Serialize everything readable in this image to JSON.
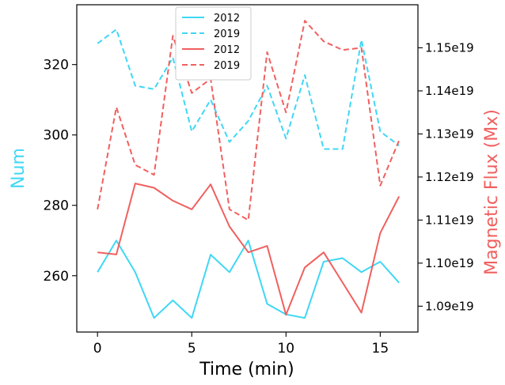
{
  "chart_data": {
    "type": "line",
    "xlabel": "Time (min)",
    "ylabel_left": "Num",
    "ylabel_right": "Magnetic Flux (Mx)",
    "xlim": [
      -1.1,
      17
    ],
    "ylim_left": [
      244,
      337
    ],
    "ylim_right": [
      1.084e+19,
      1.16e+19
    ],
    "x_ticks": [
      0,
      5,
      10,
      15
    ],
    "y_left_ticks": [
      260,
      280,
      300,
      320
    ],
    "y_right_ticks": [
      {
        "value": 1.09e+19,
        "label": "1.09e19"
      },
      {
        "value": 1.1e+19,
        "label": "1.10e19"
      },
      {
        "value": 1.11e+19,
        "label": "1.11e19"
      },
      {
        "value": 1.12e+19,
        "label": "1.12e19"
      },
      {
        "value": 1.13e+19,
        "label": "1.13e19"
      },
      {
        "value": 1.14e+19,
        "label": "1.14e19"
      },
      {
        "value": 1.15e+19,
        "label": "1.15e19"
      }
    ],
    "x": [
      0,
      1,
      2,
      3,
      4,
      5,
      6,
      7,
      8,
      9,
      10,
      11,
      12,
      13,
      14,
      15,
      16
    ],
    "series": [
      {
        "name": "2012",
        "axis": "left",
        "style": "solid",
        "color": "#3fd7f5",
        "values": [
          261,
          270,
          261,
          248,
          253,
          248,
          266,
          261,
          270,
          252,
          249,
          248,
          264,
          265,
          261,
          264,
          258
        ]
      },
      {
        "name": "2019",
        "axis": "left",
        "style": "dashed",
        "color": "#3fd7f5",
        "values": [
          326,
          330,
          314,
          313,
          322,
          301,
          310,
          298,
          304,
          314,
          299,
          317,
          296,
          296,
          327,
          301,
          297
        ]
      },
      {
        "name": "2012",
        "axis": "right",
        "style": "solid",
        "color": "#f0605f",
        "values": [
          1.1025e+19,
          1.102e+19,
          1.1185e+19,
          1.1175e+19,
          1.1145e+19,
          1.1125e+19,
          1.1183e+19,
          1.1085e+19,
          1.1025e+19,
          1.104e+19,
          1.088e+19,
          1.099e+19,
          1.1025e+19,
          1.0955e+19,
          1.0885e+19,
          1.107e+19,
          1.1155e+19
        ]
      },
      {
        "name": "2019",
        "axis": "right",
        "style": "dashed",
        "color": "#f0605f",
        "values": [
          1.1125e+19,
          1.1362e+19,
          1.1228e+19,
          1.1205e+19,
          1.1528e+19,
          1.1395e+19,
          1.1428e+19,
          1.1125e+19,
          1.11e+19,
          1.149e+19,
          1.135e+19,
          1.1563e+19,
          1.1515e+19,
          1.1495e+19,
          1.15e+19,
          1.118e+19,
          1.1285e+19
        ]
      }
    ],
    "legend": {
      "placement": "upper-center",
      "entries": [
        "2012",
        "2019",
        "2012",
        "2019"
      ]
    },
    "grid": false
  }
}
